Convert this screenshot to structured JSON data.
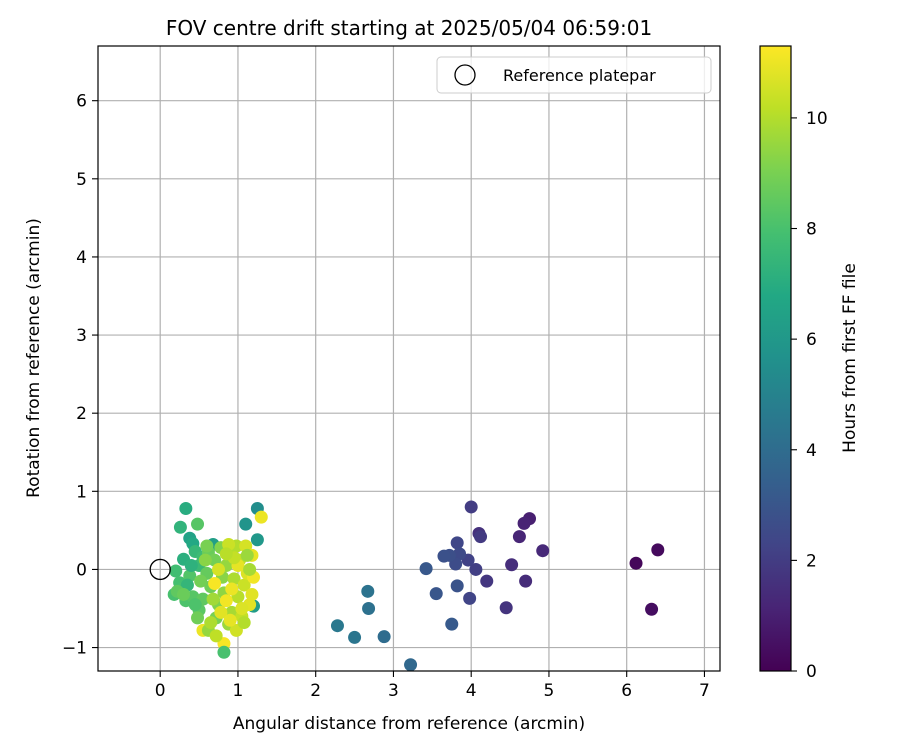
{
  "chart_data": {
    "type": "scatter",
    "title": "FOV centre drift starting at 2025/05/04 06:59:01",
    "xlabel": "Angular distance from reference (arcmin)",
    "ylabel": "Rotation from reference (arcmin)",
    "xlim": [
      -0.8,
      7.2
    ],
    "ylim": [
      -1.3,
      6.7
    ],
    "xticks": [
      0,
      1,
      2,
      3,
      4,
      5,
      6,
      7
    ],
    "yticks": [
      -1,
      0,
      1,
      2,
      3,
      4,
      5,
      6
    ],
    "xtick_labels": [
      "0",
      "1",
      "2",
      "3",
      "4",
      "5",
      "6",
      "7"
    ],
    "ytick_labels": [
      "−1",
      "0",
      "1",
      "2",
      "3",
      "4",
      "5",
      "6"
    ],
    "grid": true,
    "legend": {
      "placement": "top-right",
      "entries": [
        {
          "label": "Reference platepar",
          "marker": "open-circle"
        }
      ]
    },
    "reference_point": {
      "x": 0,
      "y": 0
    },
    "colorbar": {
      "label": "Hours from first FF file",
      "colormap": "viridis",
      "range": [
        0,
        11.3
      ],
      "ticks": [
        0,
        2,
        4,
        6,
        8,
        10
      ],
      "tick_labels": [
        "0",
        "2",
        "4",
        "6",
        "8",
        "10"
      ]
    },
    "series": [
      {
        "colorscale_value_key": "c",
        "points": [
          {
            "x": 6.12,
            "y": 0.08,
            "c": 0.2
          },
          {
            "x": 6.4,
            "y": 0.25,
            "c": 0.3
          },
          {
            "x": 6.32,
            "y": -0.51,
            "c": 0.4
          },
          {
            "x": 4.75,
            "y": 0.65,
            "c": 1.0
          },
          {
            "x": 4.68,
            "y": 0.59,
            "c": 1.1
          },
          {
            "x": 4.62,
            "y": 0.42,
            "c": 1.2
          },
          {
            "x": 4.92,
            "y": 0.24,
            "c": 1.3
          },
          {
            "x": 4.7,
            "y": -0.15,
            "c": 1.4
          },
          {
            "x": 4.52,
            "y": 0.06,
            "c": 1.5
          },
          {
            "x": 4.45,
            "y": -0.49,
            "c": 1.7
          },
          {
            "x": 4.2,
            "y": -0.15,
            "c": 1.8
          },
          {
            "x": 4.1,
            "y": 0.46,
            "c": 1.6
          },
          {
            "x": 4.12,
            "y": 0.42,
            "c": 1.9
          },
          {
            "x": 4.0,
            "y": 0.8,
            "c": 2.0
          },
          {
            "x": 4.06,
            "y": 0.0,
            "c": 2.1
          },
          {
            "x": 3.96,
            "y": 0.12,
            "c": 2.2
          },
          {
            "x": 3.98,
            "y": -0.37,
            "c": 2.3
          },
          {
            "x": 3.82,
            "y": 0.34,
            "c": 2.4
          },
          {
            "x": 3.85,
            "y": 0.2,
            "c": 2.5
          },
          {
            "x": 3.8,
            "y": 0.07,
            "c": 2.6
          },
          {
            "x": 3.72,
            "y": 0.18,
            "c": 2.7
          },
          {
            "x": 3.65,
            "y": 0.17,
            "c": 2.8
          },
          {
            "x": 3.82,
            "y": -0.21,
            "c": 2.9
          },
          {
            "x": 3.55,
            "y": -0.31,
            "c": 3.0
          },
          {
            "x": 3.42,
            "y": 0.01,
            "c": 3.1
          },
          {
            "x": 3.75,
            "y": -0.7,
            "c": 3.2
          },
          {
            "x": 3.22,
            "y": -1.22,
            "c": 3.8
          },
          {
            "x": 2.88,
            "y": -0.86,
            "c": 4.0
          },
          {
            "x": 2.68,
            "y": -0.5,
            "c": 4.2
          },
          {
            "x": 2.67,
            "y": -0.28,
            "c": 4.3
          },
          {
            "x": 2.5,
            "y": -0.87,
            "c": 4.4
          },
          {
            "x": 2.28,
            "y": -0.72,
            "c": 4.5
          },
          {
            "x": 1.25,
            "y": 0.78,
            "c": 5.5
          },
          {
            "x": 1.1,
            "y": 0.58,
            "c": 5.8
          },
          {
            "x": 1.3,
            "y": 0.67,
            "c": 11.0
          },
          {
            "x": 1.25,
            "y": 0.38,
            "c": 6.0
          },
          {
            "x": 1.2,
            "y": -0.47,
            "c": 6.2
          },
          {
            "x": 0.68,
            "y": 0.32,
            "c": 6.3
          },
          {
            "x": 0.38,
            "y": 0.4,
            "c": 6.5
          },
          {
            "x": 0.42,
            "y": 0.33,
            "c": 6.8
          },
          {
            "x": 0.33,
            "y": 0.78,
            "c": 7.0
          },
          {
            "x": 0.3,
            "y": 0.13,
            "c": 7.1
          },
          {
            "x": 0.26,
            "y": 0.54,
            "c": 7.3
          },
          {
            "x": 0.48,
            "y": 0.58,
            "c": 8.3
          },
          {
            "x": 0.45,
            "y": 0.23,
            "c": 7.5
          },
          {
            "x": 0.5,
            "y": 0.05,
            "c": 7.6
          },
          {
            "x": 0.55,
            "y": 0.16,
            "c": 7.7
          },
          {
            "x": 0.2,
            "y": -0.02,
            "c": 7.8
          },
          {
            "x": 0.25,
            "y": -0.17,
            "c": 7.9
          },
          {
            "x": 0.18,
            "y": -0.32,
            "c": 8.0
          },
          {
            "x": 0.28,
            "y": -0.25,
            "c": 8.0
          },
          {
            "x": 0.33,
            "y": -0.4,
            "c": 8.1
          },
          {
            "x": 0.38,
            "y": -0.08,
            "c": 8.2
          },
          {
            "x": 0.42,
            "y": -0.35,
            "c": 8.3
          },
          {
            "x": 0.5,
            "y": -0.52,
            "c": 8.4
          },
          {
            "x": 0.55,
            "y": -0.38,
            "c": 8.5
          },
          {
            "x": 0.6,
            "y": -0.05,
            "c": 8.6
          },
          {
            "x": 0.62,
            "y": 0.22,
            "c": 8.7
          },
          {
            "x": 0.65,
            "y": -0.22,
            "c": 8.8
          },
          {
            "x": 0.7,
            "y": 0.12,
            "c": 8.9
          },
          {
            "x": 0.72,
            "y": -0.62,
            "c": 9.0
          },
          {
            "x": 0.75,
            "y": -0.45,
            "c": 9.1
          },
          {
            "x": 0.78,
            "y": 0.28,
            "c": 9.2
          },
          {
            "x": 0.8,
            "y": -0.1,
            "c": 9.3
          },
          {
            "x": 0.82,
            "y": -0.3,
            "c": 9.4
          },
          {
            "x": 0.85,
            "y": 0.05,
            "c": 9.5
          },
          {
            "x": 0.88,
            "y": -0.7,
            "c": 9.6
          },
          {
            "x": 0.9,
            "y": 0.22,
            "c": 9.7
          },
          {
            "x": 0.92,
            "y": -0.55,
            "c": 9.8
          },
          {
            "x": 0.95,
            "y": -0.12,
            "c": 9.9
          },
          {
            "x": 0.98,
            "y": 0.3,
            "c": 10.0
          },
          {
            "x": 1.0,
            "y": -0.35,
            "c": 10.1
          },
          {
            "x": 1.02,
            "y": 0.12,
            "c": 10.2
          },
          {
            "x": 1.05,
            "y": -0.6,
            "c": 10.3
          },
          {
            "x": 1.08,
            "y": -0.2,
            "c": 10.4
          },
          {
            "x": 1.1,
            "y": 0.3,
            "c": 10.6
          },
          {
            "x": 1.12,
            "y": -0.05,
            "c": 10.7
          },
          {
            "x": 1.15,
            "y": -0.45,
            "c": 10.8
          },
          {
            "x": 1.18,
            "y": 0.18,
            "c": 10.9
          },
          {
            "x": 0.55,
            "y": -0.78,
            "c": 11.0
          },
          {
            "x": 0.82,
            "y": -0.95,
            "c": 11.2
          },
          {
            "x": 0.82,
            "y": -1.06,
            "c": 8.0
          },
          {
            "x": 0.62,
            "y": -0.78,
            "c": 9.5
          },
          {
            "x": 0.98,
            "y": -0.78,
            "c": 10.5
          },
          {
            "x": 1.08,
            "y": -0.68,
            "c": 10.0
          },
          {
            "x": 1.18,
            "y": -0.32,
            "c": 10.8
          },
          {
            "x": 1.2,
            "y": -0.1,
            "c": 11.1
          },
          {
            "x": 0.48,
            "y": -0.62,
            "c": 8.8
          },
          {
            "x": 0.72,
            "y": -0.85,
            "c": 10.2
          },
          {
            "x": 0.88,
            "y": 0.32,
            "c": 10.4
          },
          {
            "x": 0.6,
            "y": 0.3,
            "c": 9.0
          },
          {
            "x": 0.35,
            "y": -0.2,
            "c": 7.4
          },
          {
            "x": 0.4,
            "y": 0.05,
            "c": 7.2
          },
          {
            "x": 0.52,
            "y": -0.15,
            "c": 8.9
          },
          {
            "x": 0.68,
            "y": -0.38,
            "c": 9.7
          },
          {
            "x": 0.75,
            "y": 0.0,
            "c": 10.6
          },
          {
            "x": 0.92,
            "y": -0.25,
            "c": 11.0
          },
          {
            "x": 1.0,
            "y": 0.05,
            "c": 10.9
          },
          {
            "x": 1.05,
            "y": -0.5,
            "c": 10.7
          },
          {
            "x": 0.78,
            "y": -0.55,
            "c": 10.8
          },
          {
            "x": 0.85,
            "y": -0.4,
            "c": 11.1
          },
          {
            "x": 0.7,
            "y": -0.18,
            "c": 11.2
          },
          {
            "x": 0.58,
            "y": 0.12,
            "c": 9.3
          },
          {
            "x": 0.95,
            "y": 0.15,
            "c": 10.3
          },
          {
            "x": 0.65,
            "y": -0.68,
            "c": 9.9
          },
          {
            "x": 0.45,
            "y": -0.45,
            "c": 8.1
          },
          {
            "x": 1.12,
            "y": 0.18,
            "c": 9.6
          },
          {
            "x": 1.15,
            "y": 0.0,
            "c": 9.8
          },
          {
            "x": 0.22,
            "y": -0.28,
            "c": 8.5
          },
          {
            "x": 0.3,
            "y": -0.32,
            "c": 8.7
          },
          {
            "x": 0.85,
            "y": 0.2,
            "c": 10.1
          },
          {
            "x": 0.9,
            "y": -0.65,
            "c": 10.9
          }
        ]
      }
    ]
  }
}
